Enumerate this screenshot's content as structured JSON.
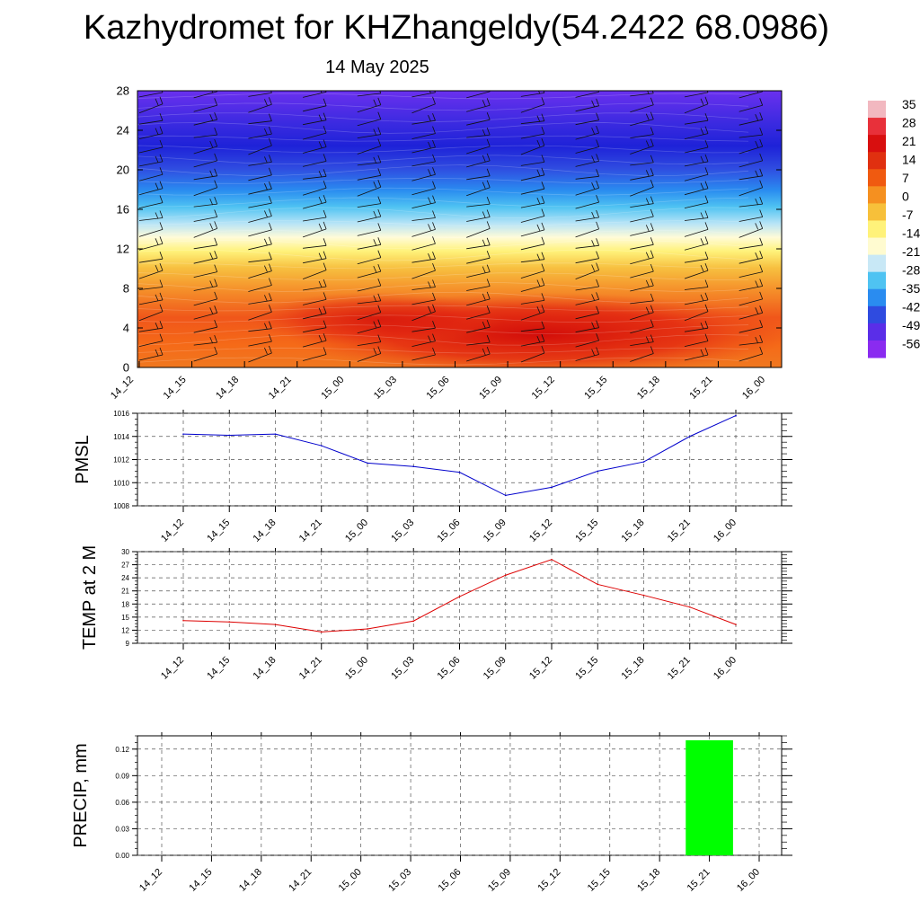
{
  "title": "Kazhydromet for KHZhangeldy(54.2422 68.0986)",
  "subtitle": "14 May 2025",
  "chart_data": [
    {
      "type": "heatmap",
      "name": "upper-air cross section",
      "x_ticks": [
        "14_12",
        "14_15",
        "14_18",
        "14_21",
        "15_00",
        "15_03",
        "15_06",
        "15_09",
        "15_12",
        "15_15",
        "15_18",
        "15_21",
        "16_00"
      ],
      "y_ticks": [
        "0",
        "4",
        "8",
        "12",
        "16",
        "20",
        "24",
        "28"
      ],
      "ylim": [
        0,
        28
      ],
      "colorbar_labels": [
        "35",
        "28",
        "21",
        "14",
        "7",
        "0",
        "-7",
        "-14",
        "-21",
        "-28",
        "-35",
        "-42",
        "-49",
        "-56"
      ],
      "colorbar_colors": [
        "#f2b8c0",
        "#e8303a",
        "#d80f0f",
        "#e03010",
        "#f05a10",
        "#f59020",
        "#f7c03a",
        "#fff27a",
        "#fffbd0",
        "#c8e8f6",
        "#4fc3f2",
        "#2a8cf0",
        "#2f4be0",
        "#5a2ee8",
        "#8a2bf0"
      ],
      "wind_barbs": true
    },
    {
      "type": "line",
      "ylabel": "PMSL",
      "categories": [
        "14_12",
        "14_15",
        "14_18",
        "14_21",
        "15_00",
        "15_03",
        "15_06",
        "15_09",
        "15_12",
        "15_15",
        "15_18",
        "15_21",
        "16_00"
      ],
      "values": [
        1014.2,
        1014.1,
        1014.2,
        1013.2,
        1011.7,
        1011.4,
        1010.9,
        1008.9,
        1009.6,
        1011.0,
        1011.8,
        1014.0,
        1015.8
      ],
      "ylim": [
        1008,
        1016
      ],
      "y_ticks": [
        "1008",
        "1010",
        "1012",
        "1014",
        "1016"
      ],
      "color": "#0000cc",
      "grid": true
    },
    {
      "type": "line",
      "ylabel": "TEMP at 2 M",
      "categories": [
        "14_12",
        "14_15",
        "14_18",
        "14_21",
        "15_00",
        "15_03",
        "15_06",
        "15_09",
        "15_12",
        "15_15",
        "15_18",
        "15_21",
        "16_00"
      ],
      "values": [
        14.2,
        13.9,
        13.3,
        11.6,
        12.3,
        14.1,
        19.7,
        24.6,
        28.2,
        22.5,
        20.0,
        17.3,
        13.3
      ],
      "ylim": [
        9,
        30
      ],
      "y_ticks": [
        "9",
        "12",
        "15",
        "18",
        "21",
        "24",
        "27",
        "30"
      ],
      "color": "#dd0000",
      "grid": true
    },
    {
      "type": "bar",
      "ylabel": "PRECIP, mm",
      "categories": [
        "14_12",
        "14_15",
        "14_18",
        "14_21",
        "15_00",
        "15_03",
        "15_06",
        "15_09",
        "15_12",
        "15_15",
        "15_18",
        "15_21",
        "16_00"
      ],
      "values": [
        0,
        0,
        0,
        0,
        0,
        0,
        0,
        0,
        0,
        0,
        0,
        0.13,
        0
      ],
      "ylim": [
        0,
        0.135
      ],
      "y_ticks": [
        "0.00",
        "0.03",
        "0.06",
        "0.09",
        "0.12"
      ],
      "color": "#00ff00",
      "grid": true
    }
  ]
}
